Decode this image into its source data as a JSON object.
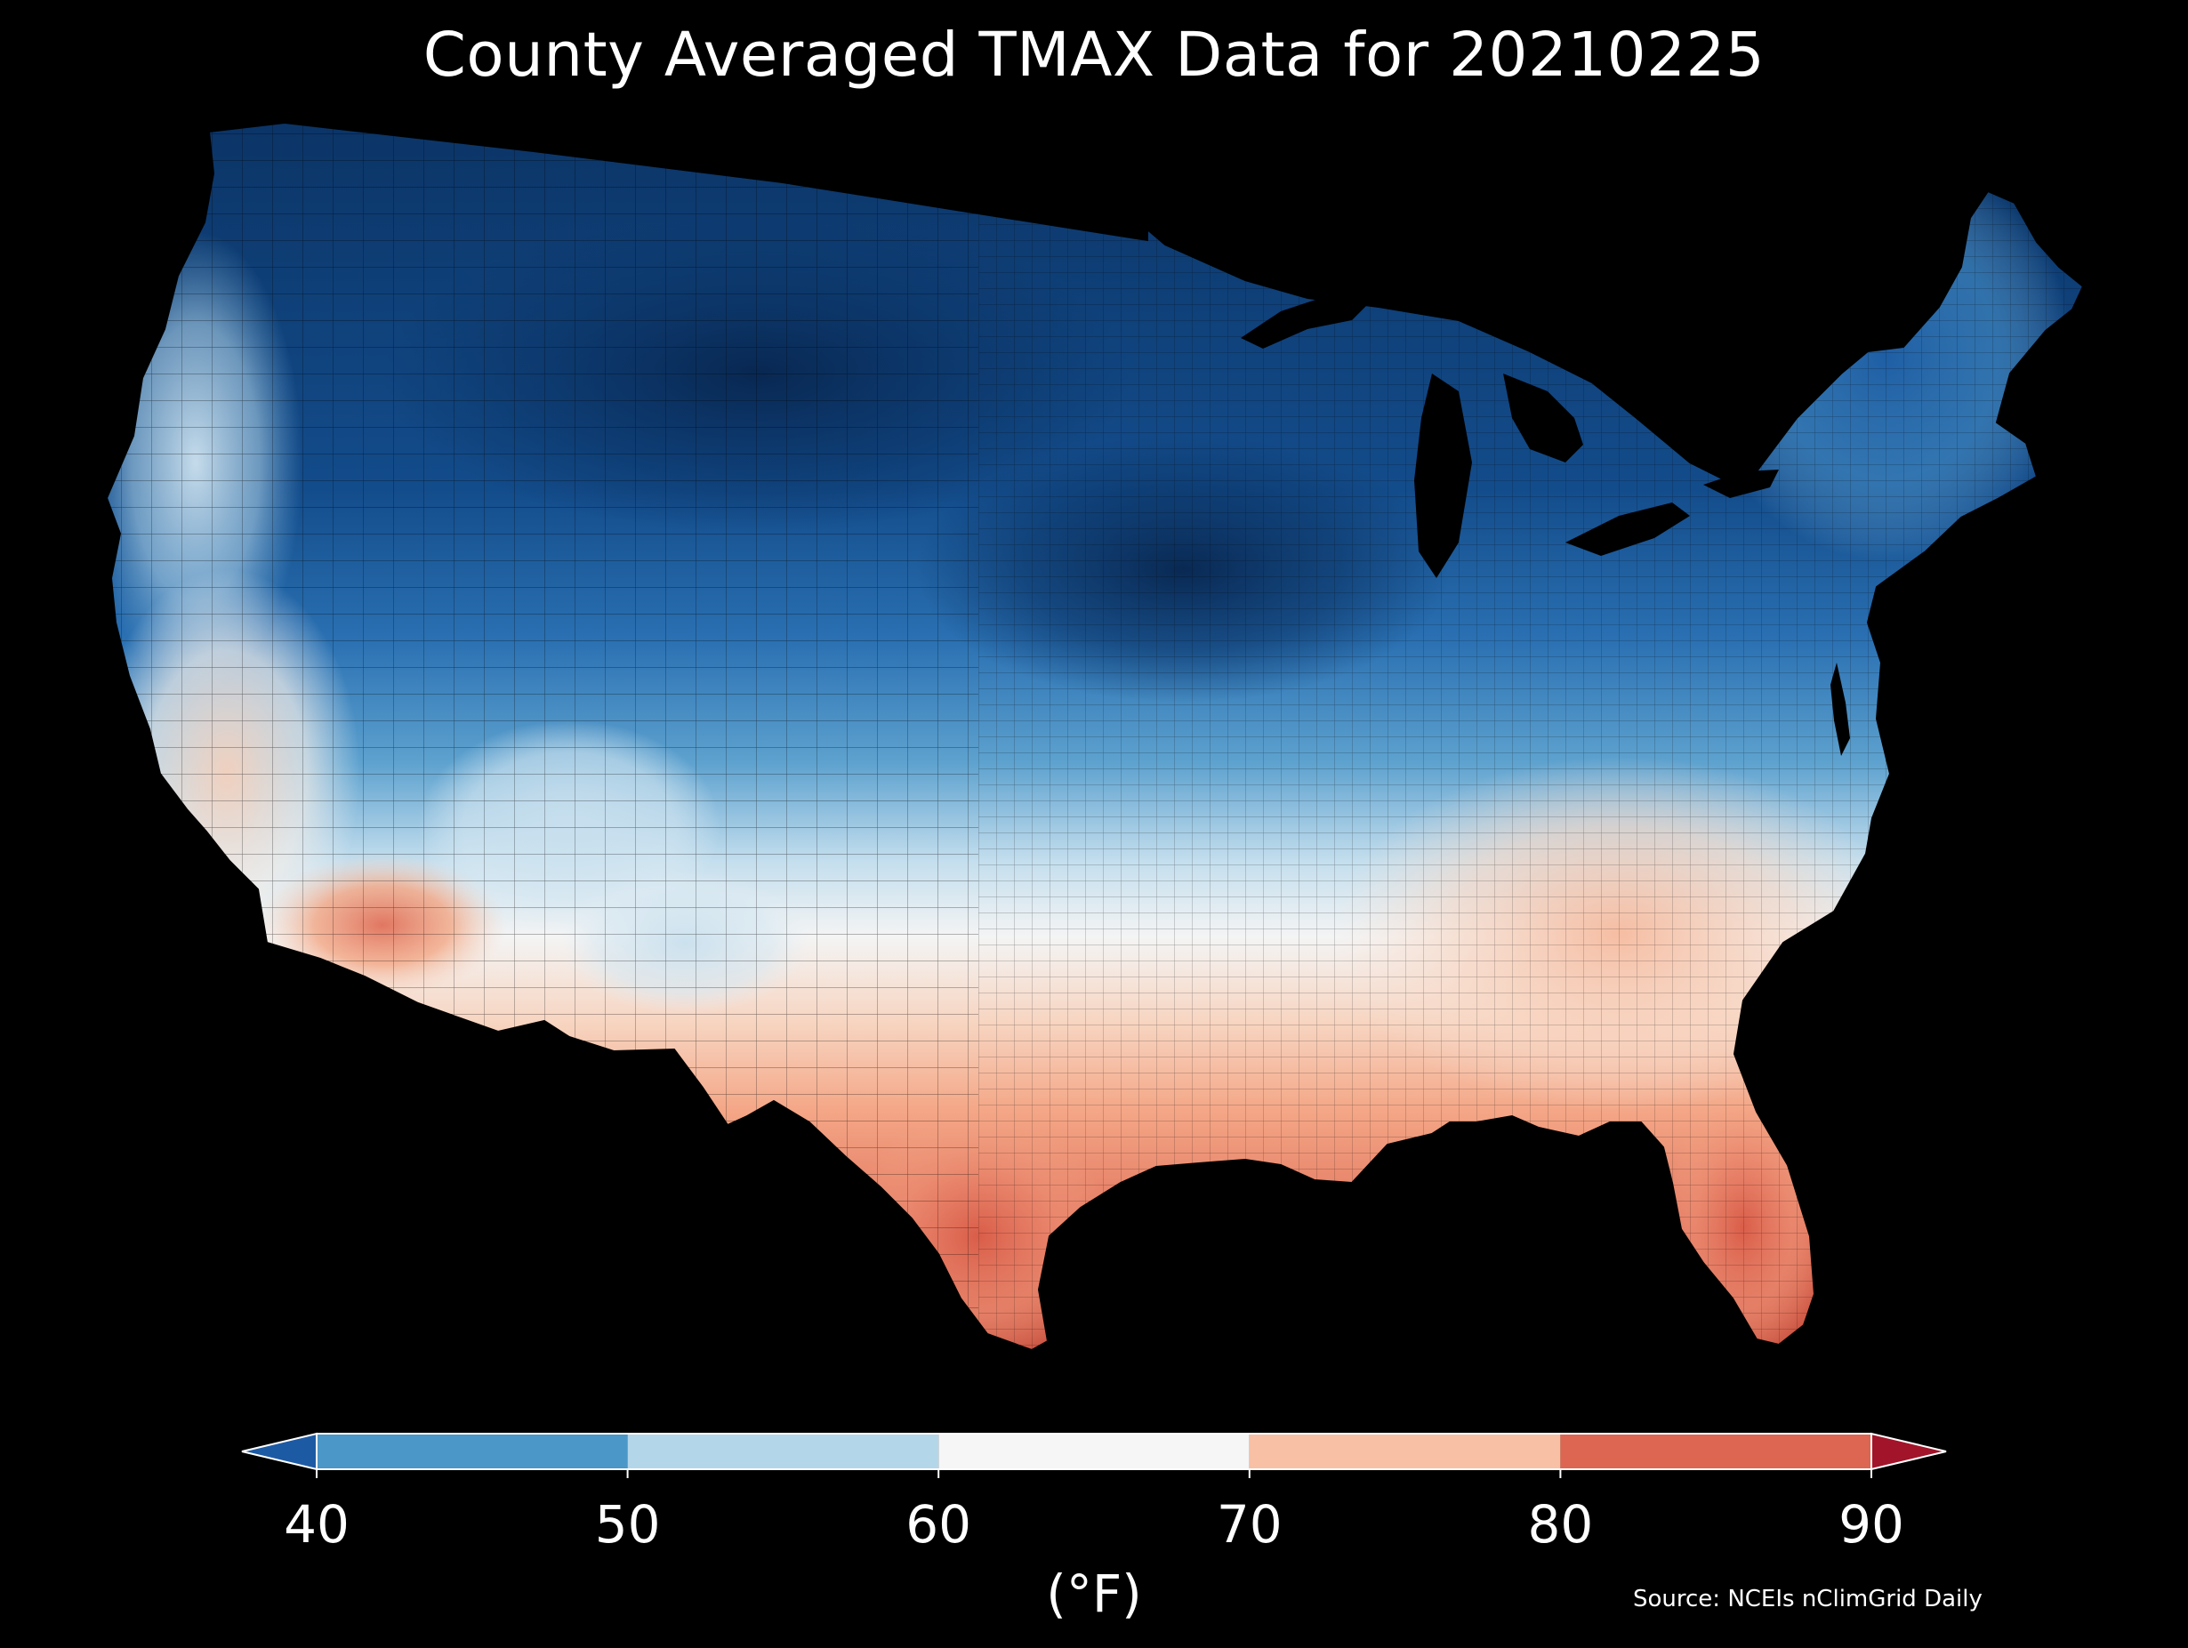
{
  "title": "County Averaged TMAX Data for 20210225",
  "colorbar": {
    "units_label": "(°F)",
    "ticks": [
      "40",
      "50",
      "60",
      "70",
      "80",
      "90"
    ],
    "bins": [
      {
        "from": 40,
        "to": 50,
        "color": "#4a97c8"
      },
      {
        "from": 50,
        "to": 60,
        "color": "#b4d6e9"
      },
      {
        "from": 60,
        "to": 70,
        "color": "#f6f6f6"
      },
      {
        "from": 70,
        "to": 80,
        "color": "#f8c0a4"
      },
      {
        "from": 80,
        "to": 90,
        "color": "#dc6651"
      }
    ],
    "under_color": "#1d5aa4",
    "over_color": "#a11429"
  },
  "source": "Source: NCEIs nClimGrid Daily",
  "map": {
    "region": "Contiguous United States",
    "variable": "TMAX",
    "background_color": "#000000",
    "border_color": "#000000"
  }
}
